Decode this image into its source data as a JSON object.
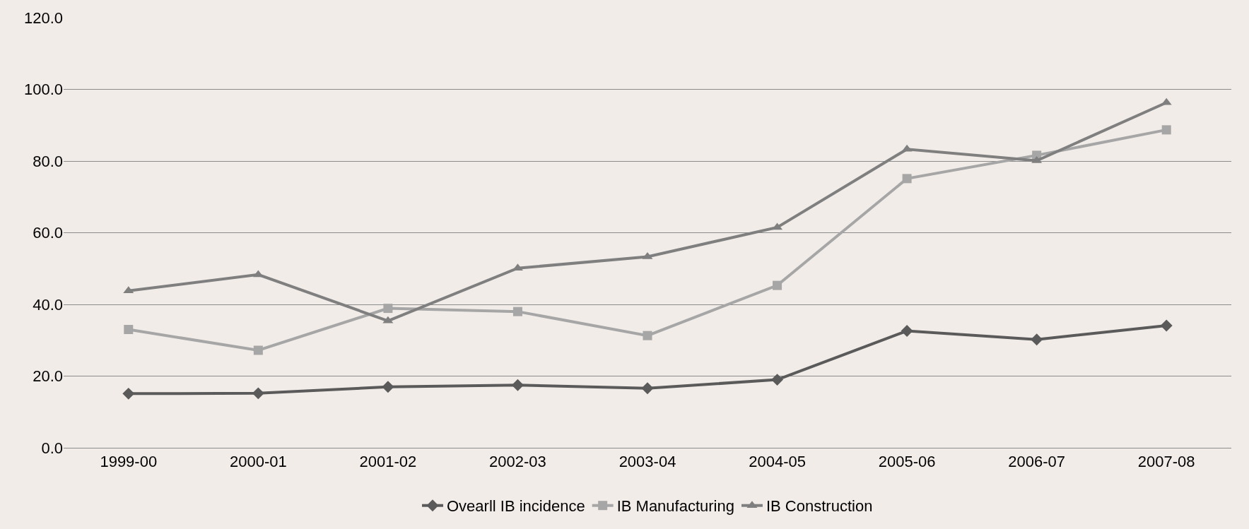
{
  "chart_data": {
    "type": "line",
    "categories": [
      "1999-00",
      "2000-01",
      "2001-02",
      "2002-03",
      "2003-04",
      "2004-05",
      "2005-06",
      "2006-07",
      "2007-08"
    ],
    "series": [
      {
        "name": "Ovearll IB incidence",
        "color": "#5a5a5a",
        "marker": "diamond",
        "values": [
          15.1,
          15.2,
          17.0,
          17.5,
          16.6,
          19.0,
          32.6,
          30.2,
          34.1
        ]
      },
      {
        "name": "IB Manufacturing",
        "color": "#a6a6a6",
        "marker": "square",
        "values": [
          33.0,
          27.2,
          38.9,
          38.0,
          31.3,
          45.3,
          75.1,
          81.6,
          88.7
        ]
      },
      {
        "name": "IB Construction",
        "color": "#7f7f7f",
        "marker": "triangle",
        "values": [
          43.8,
          48.3,
          35.4,
          50.1,
          53.3,
          61.5,
          83.3,
          80.1,
          96.3
        ]
      }
    ],
    "ylim": [
      0,
      120
    ],
    "yticks": [
      {
        "value": 0,
        "label": "0.0"
      },
      {
        "value": 20,
        "label": "20.0"
      },
      {
        "value": 40,
        "label": "40.0"
      },
      {
        "value": 60,
        "label": "60.0"
      },
      {
        "value": 80,
        "label": "80.0"
      },
      {
        "value": 100,
        "label": "100.0"
      },
      {
        "value": 120,
        "label": "120.0"
      }
    ],
    "grid": "y",
    "legend": "bottom",
    "line_style": "solid"
  }
}
